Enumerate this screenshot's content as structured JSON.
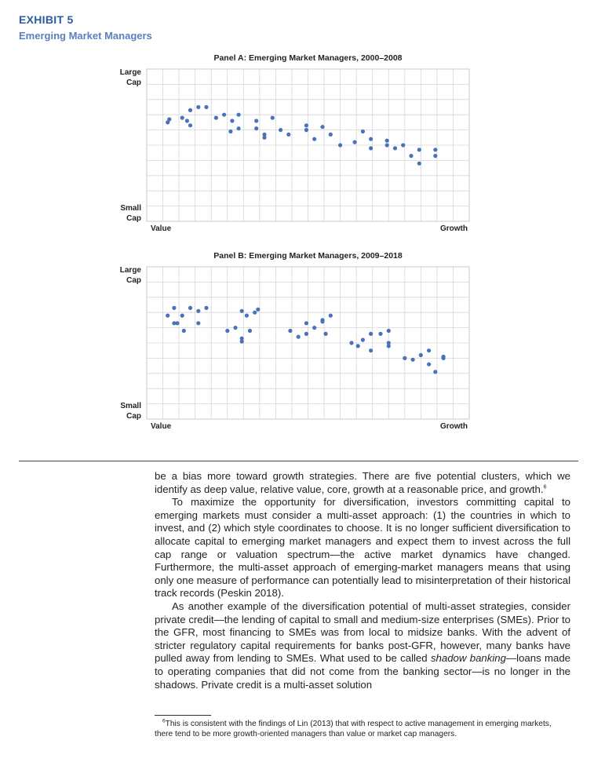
{
  "exhibit": {
    "label": "EXHIBIT 5",
    "title": "Emerging Market Managers"
  },
  "chart_data": [
    {
      "type": "scatter",
      "title": "Panel A: Emerging Market Managers, 2000–2008",
      "xlabel_left": "Value",
      "xlabel_right": "Growth",
      "ylabel_top": [
        "Large",
        "Cap"
      ],
      "ylabel_bottom": [
        "Small",
        "Cap"
      ],
      "xlim": [
        0,
        20
      ],
      "ylim": [
        0,
        10
      ],
      "grid": true,
      "color": "#4a72b8",
      "points": [
        [
          1.3,
          6.5
        ],
        [
          1.4,
          6.7
        ],
        [
          2.2,
          6.8
        ],
        [
          2.5,
          6.6
        ],
        [
          2.7,
          6.3
        ],
        [
          2.7,
          7.3
        ],
        [
          3.2,
          7.5
        ],
        [
          3.7,
          7.5
        ],
        [
          4.3,
          6.8
        ],
        [
          4.8,
          7.0
        ],
        [
          5.2,
          5.9
        ],
        [
          5.3,
          6.6
        ],
        [
          5.7,
          6.1
        ],
        [
          5.7,
          7.0
        ],
        [
          6.8,
          6.1
        ],
        [
          6.8,
          6.6
        ],
        [
          7.3,
          5.7
        ],
        [
          7.3,
          5.5
        ],
        [
          7.8,
          6.8
        ],
        [
          8.3,
          6.0
        ],
        [
          8.8,
          5.7
        ],
        [
          9.9,
          6.3
        ],
        [
          9.9,
          6.0
        ],
        [
          10.4,
          5.4
        ],
        [
          10.9,
          6.2
        ],
        [
          11.4,
          5.7
        ],
        [
          12.0,
          5.0
        ],
        [
          12.9,
          5.2
        ],
        [
          13.4,
          5.9
        ],
        [
          13.9,
          5.4
        ],
        [
          13.9,
          4.8
        ],
        [
          14.9,
          5.3
        ],
        [
          14.9,
          5.0
        ],
        [
          15.4,
          4.8
        ],
        [
          15.9,
          5.0
        ],
        [
          16.4,
          4.3
        ],
        [
          16.9,
          4.7
        ],
        [
          16.9,
          3.8
        ],
        [
          17.9,
          4.7
        ],
        [
          17.9,
          4.3
        ]
      ]
    },
    {
      "type": "scatter",
      "title": "Panel B: Emerging Market Managers, 2009–2018",
      "xlabel_left": "Value",
      "xlabel_right": "Growth",
      "ylabel_top": [
        "Large",
        "Cap"
      ],
      "ylabel_bottom": [
        "Small",
        "Cap"
      ],
      "xlim": [
        0,
        20
      ],
      "ylim": [
        0,
        10
      ],
      "grid": true,
      "color": "#4a72b8",
      "points": [
        [
          1.3,
          6.8
        ],
        [
          1.7,
          7.3
        ],
        [
          1.9,
          6.3
        ],
        [
          2.2,
          6.8
        ],
        [
          1.7,
          6.3
        ],
        [
          2.7,
          7.3
        ],
        [
          3.2,
          7.1
        ],
        [
          3.7,
          7.3
        ],
        [
          3.2,
          6.3
        ],
        [
          2.3,
          5.8
        ],
        [
          5.0,
          5.8
        ],
        [
          5.5,
          6.0
        ],
        [
          5.9,
          7.1
        ],
        [
          6.2,
          6.8
        ],
        [
          6.7,
          7.0
        ],
        [
          6.9,
          7.2
        ],
        [
          5.9,
          5.3
        ],
        [
          6.4,
          5.8
        ],
        [
          5.9,
          5.1
        ],
        [
          8.9,
          5.8
        ],
        [
          9.4,
          5.4
        ],
        [
          9.9,
          5.6
        ],
        [
          10.4,
          6.0
        ],
        [
          10.9,
          6.4
        ],
        [
          11.4,
          6.8
        ],
        [
          10.9,
          6.5
        ],
        [
          9.9,
          6.3
        ],
        [
          11.1,
          5.6
        ],
        [
          12.7,
          5.0
        ],
        [
          13.1,
          4.8
        ],
        [
          13.4,
          5.2
        ],
        [
          13.9,
          5.6
        ],
        [
          13.9,
          4.5
        ],
        [
          14.5,
          5.6
        ],
        [
          15.0,
          5.8
        ],
        [
          15.0,
          4.8
        ],
        [
          15.0,
          5.0
        ],
        [
          16.0,
          4.0
        ],
        [
          16.5,
          3.9
        ],
        [
          17.0,
          4.2
        ],
        [
          17.5,
          4.5
        ],
        [
          17.5,
          3.6
        ],
        [
          17.9,
          3.1
        ],
        [
          18.4,
          4.1
        ],
        [
          18.4,
          4.0
        ]
      ]
    }
  ],
  "body": {
    "p1_a": "be a bias more toward growth strategies. There are five potential clusters, which we identify as deep value, relative value, core, growth at a reasonable price, and growth.",
    "p1_sup": "6",
    "p2": "To maximize the opportunity for diversification, investors committing capital to emerging markets must consider a multi-asset approach: (1) the countries in which to invest, and (2) which style coordinates to choose. It is no longer sufficient diversification to allocate capital to emerging market managers and expect them to invest across the full cap range or valuation spectrum—the active market dynamics have changed. Furthermore, the multi-asset approach of emerging-market managers means that using only one measure of performance can potentially lead to misinterpretation of their historical track records (Peskin 2018).",
    "p3_a": "As another example of the diversification potential of multi-asset strategies, consider private credit—the lending of capital to small and medium-size enterprises (SMEs). Prior to the GFR, most financing to SMEs was from local to midsize banks. With the advent of stricter regulatory capital requirements for banks post-GFR, however, many banks have pulled away from lending to SMEs. What used to be called ",
    "p3_em": "shadow banking",
    "p3_b": "—loans made to operating companies that did not come from the banking sector—is no longer in the shadows. Private credit is a multi-asset solution"
  },
  "footnote": {
    "sup": "6",
    "text": "This is consistent with the findings of Lin (2013) that with respect to active management in emerging markets, there tend to be more growth-oriented managers than value or market cap managers."
  }
}
